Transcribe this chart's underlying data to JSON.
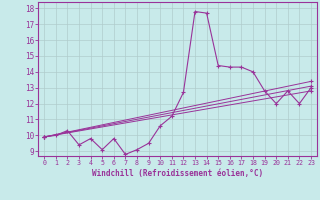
{
  "background_color": "#c8eaea",
  "line_color": "#993399",
  "grid_color": "#b0cccc",
  "xlim": [
    -0.5,
    23.5
  ],
  "ylim": [
    8.7,
    18.4
  ],
  "xticks": [
    0,
    1,
    2,
    3,
    4,
    5,
    6,
    7,
    8,
    9,
    10,
    11,
    12,
    13,
    14,
    15,
    16,
    17,
    18,
    19,
    20,
    21,
    22,
    23
  ],
  "yticks": [
    9,
    10,
    11,
    12,
    13,
    14,
    15,
    16,
    17,
    18
  ],
  "xlabel": "Windchill (Refroidissement éolien,°C)",
  "line1_x": [
    0,
    1,
    2,
    3,
    4,
    5,
    6,
    7,
    8,
    9,
    10,
    11,
    12,
    13,
    14,
    15,
    16,
    17,
    18,
    19,
    20,
    21,
    22,
    23
  ],
  "line1_y": [
    9.9,
    10.0,
    10.3,
    9.4,
    9.8,
    9.1,
    9.8,
    8.8,
    9.1,
    9.5,
    10.6,
    11.2,
    12.7,
    17.8,
    17.7,
    14.4,
    14.3,
    14.3,
    14.0,
    12.8,
    12.0,
    12.8,
    12.0,
    13.0
  ],
  "line2_x": [
    0,
    23
  ],
  "line2_y": [
    9.9,
    12.8
  ],
  "line3_x": [
    0,
    23
  ],
  "line3_y": [
    9.9,
    13.1
  ],
  "line4_x": [
    0,
    23
  ],
  "line4_y": [
    9.9,
    13.4
  ]
}
